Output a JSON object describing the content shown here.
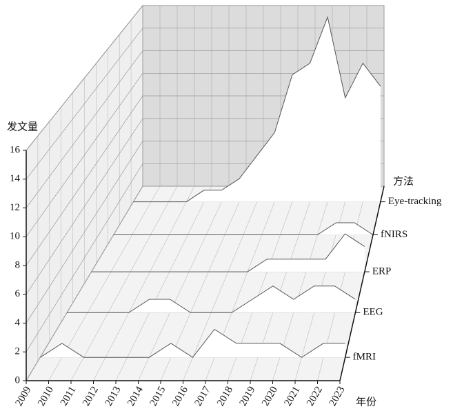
{
  "chart_data": {
    "type": "area3d",
    "y_label": "发文量",
    "x_label": "年份",
    "z_label": "方法",
    "categories": [
      "2009",
      "2010",
      "2011",
      "2012",
      "2013",
      "2014",
      "2015",
      "2016",
      "2017",
      "2018",
      "2019",
      "2020",
      "2021",
      "2022",
      "2023"
    ],
    "series": [
      {
        "name": "fMRI",
        "color": "#ffffff",
        "values": [
          0,
          1,
          0,
          0,
          0,
          0,
          1,
          0,
          2,
          1,
          1,
          1,
          0,
          1,
          1
        ]
      },
      {
        "name": "EEG",
        "color": "#ffffff",
        "values": [
          0,
          0,
          0,
          0,
          1,
          1,
          0,
          0,
          0,
          1,
          2,
          1,
          2,
          2,
          1
        ]
      },
      {
        "name": "ERP",
        "color": "#ffffff",
        "values": [
          0,
          0,
          0,
          0,
          0,
          0,
          0,
          0,
          0,
          1,
          1,
          1,
          1,
          3,
          2
        ]
      },
      {
        "name": "fNIRS",
        "color": "#ffffff",
        "values": [
          0,
          0,
          0,
          0,
          0,
          0,
          0,
          0,
          0,
          0,
          0,
          0,
          1,
          1,
          0
        ]
      },
      {
        "name": "Eye-tracking",
        "color": "#ffffff",
        "values": [
          0,
          0,
          0,
          0,
          1,
          1,
          2,
          4,
          6,
          11,
          12,
          16,
          9,
          12,
          10
        ]
      }
    ],
    "ylim": [
      0,
      16
    ],
    "yticks": [
      0,
      2,
      4,
      6,
      8,
      10,
      12,
      14,
      16
    ],
    "grid": true
  }
}
